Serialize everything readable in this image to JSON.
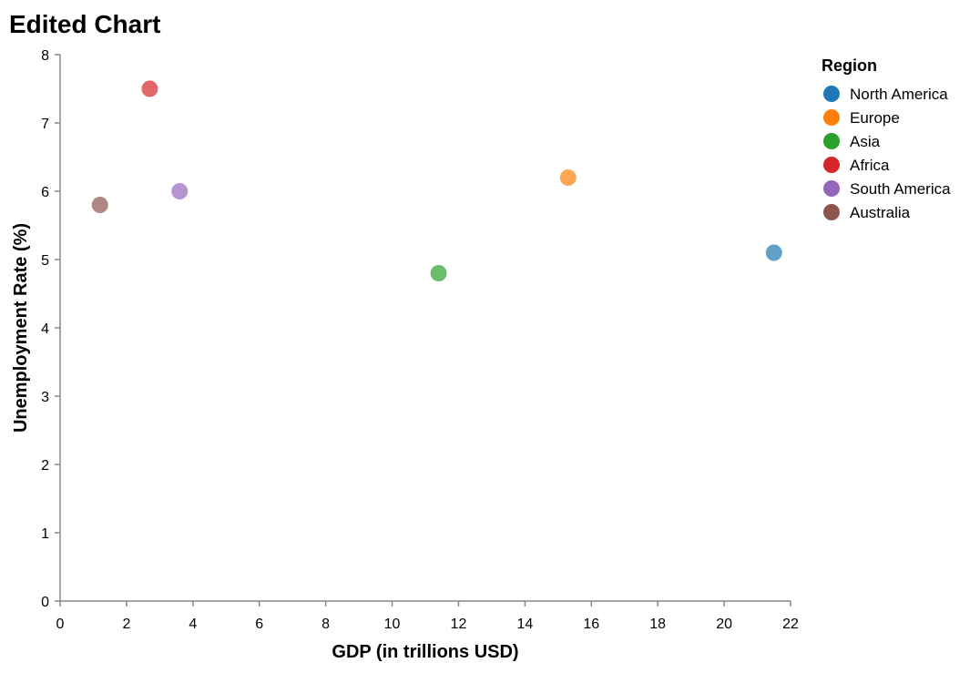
{
  "chart_data": {
    "type": "scatter",
    "title": "Edited Chart",
    "xlabel": "GDP (in trillions USD)",
    "ylabel": "Unemployment Rate (%)",
    "xlim": [
      0,
      22
    ],
    "ylim": [
      0,
      8
    ],
    "x_ticks": [
      0,
      2,
      4,
      6,
      8,
      10,
      12,
      14,
      16,
      18,
      20,
      22
    ],
    "y_ticks": [
      0,
      1,
      2,
      3,
      4,
      5,
      6,
      7,
      8
    ],
    "grid": false,
    "legend": {
      "title": "Region",
      "placement": "right"
    },
    "series": [
      {
        "name": "North America",
        "color": "#1f77b4",
        "x": 21.5,
        "y": 5.1
      },
      {
        "name": "Europe",
        "color": "#ff7f0e",
        "x": 15.3,
        "y": 6.2
      },
      {
        "name": "Asia",
        "color": "#2ca02c",
        "x": 11.4,
        "y": 4.8
      },
      {
        "name": "Africa",
        "color": "#d62728",
        "x": 2.7,
        "y": 7.5
      },
      {
        "name": "South America",
        "color": "#9467bd",
        "x": 3.6,
        "y": 6.0
      },
      {
        "name": "Australia",
        "color": "#8c564b",
        "x": 1.2,
        "y": 5.8
      }
    ]
  }
}
